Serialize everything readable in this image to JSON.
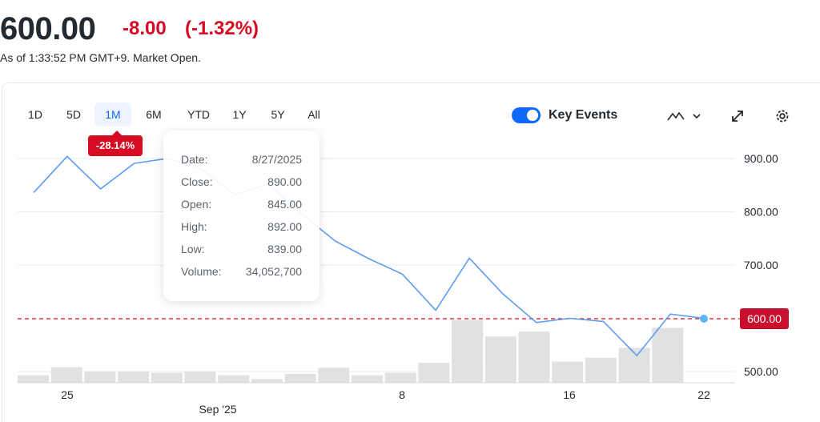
{
  "quote": {
    "price": "600.00",
    "change": "-8.00",
    "change_pct": "(-1.32%)",
    "as_of": "As of 1:33:52 PM GMT+9. Market Open."
  },
  "range_tabs": [
    "1D",
    "5D",
    "1M",
    "6M",
    "YTD",
    "1Y",
    "5Y",
    "All"
  ],
  "active_range": "1M",
  "performance_badge": "-28.14%",
  "key_events": {
    "label": "Key Events",
    "enabled": true
  },
  "toolbar": {
    "chart_type_icon": "mountain-chart-icon",
    "expand_icon": "expand-icon",
    "settings_icon": "gear-icon"
  },
  "tooltip": {
    "rows": [
      {
        "label": "Date:",
        "value": "8/27/2025"
      },
      {
        "label": "Close:",
        "value": "890.00"
      },
      {
        "label": "Open:",
        "value": "845.00"
      },
      {
        "label": "High:",
        "value": "892.00"
      },
      {
        "label": "Low:",
        "value": "839.00"
      },
      {
        "label": "Volume:",
        "value": "34,052,700"
      }
    ]
  },
  "chart_data": {
    "type": "line",
    "x_tick_labels": [
      "25",
      "Sep '25",
      "8",
      "16",
      "22"
    ],
    "y_tick_labels": [
      "900.00",
      "800.00",
      "700.00",
      "600.00",
      "500.00"
    ],
    "ylim": [
      480,
      950
    ],
    "current_price_label": "600.00",
    "reference_line": 608,
    "colors": {
      "line": "#5c9cf3",
      "reference": "#d60a22",
      "volume": "#e0e1e2",
      "grid": "#e9ebee"
    },
    "series": [
      {
        "values": [
          836,
          904,
          843,
          891,
          900,
          881,
          832,
          852,
          796,
          745,
          712,
          683,
          615,
          713,
          646,
          592,
          600,
          594,
          530,
          608,
          600
        ]
      }
    ],
    "volume_relative": [
      0.12,
      0.25,
      0.18,
      0.18,
      0.16,
      0.18,
      0.12,
      0.06,
      0.14,
      0.24,
      0.12,
      0.16,
      0.32,
      1.0,
      0.74,
      0.82,
      0.34,
      0.4,
      0.56,
      0.88
    ]
  }
}
